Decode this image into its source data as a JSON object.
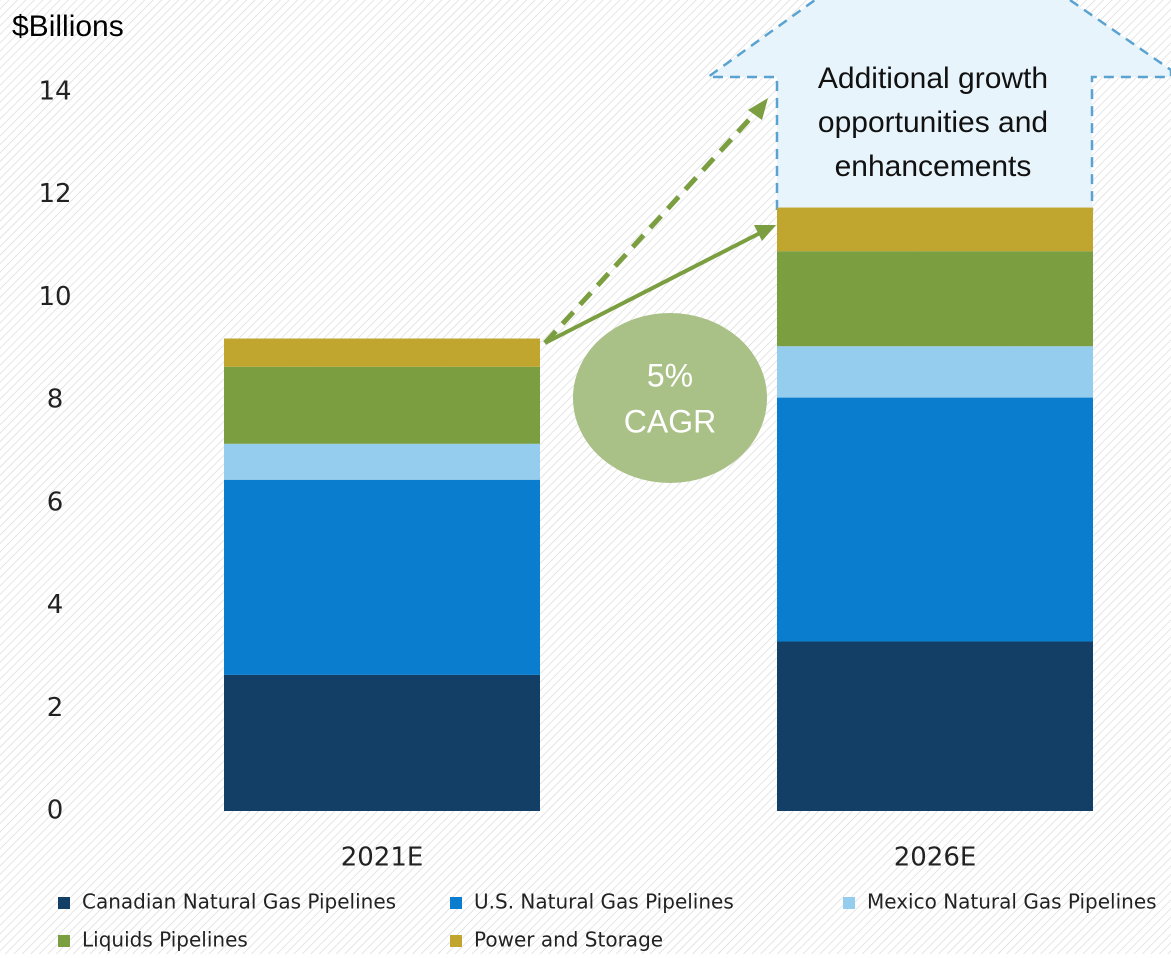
{
  "chart_data": {
    "type": "stacked_bar",
    "y_axis_label": "$Billions",
    "categories": [
      "2021E",
      "2026E"
    ],
    "series": [
      {
        "name": "Canadian Natural Gas Pipelines",
        "color": "#133f66",
        "values": [
          2.65,
          3.3
        ]
      },
      {
        "name": "U.S. Natural Gas Pipelines",
        "color": "#0b7dce",
        "values": [
          3.8,
          4.75
        ]
      },
      {
        "name": "Mexico Natural Gas Pipelines",
        "color": "#95cdef",
        "values": [
          0.7,
          1.0
        ]
      },
      {
        "name": "Liquids Pipelines",
        "color": "#7a9e40",
        "values": [
          1.5,
          1.85
        ]
      },
      {
        "name": "Power and Storage",
        "color": "#c0a52f",
        "values": [
          0.55,
          0.85
        ]
      }
    ],
    "ylim": [
      0,
      14
    ],
    "yticks": [
      0,
      2,
      4,
      6,
      8,
      10,
      12,
      14
    ],
    "cagr_label": [
      "5%",
      "CAGR"
    ],
    "growth_label": [
      "Additional growth",
      "opportunities and",
      "enhancements"
    ]
  }
}
